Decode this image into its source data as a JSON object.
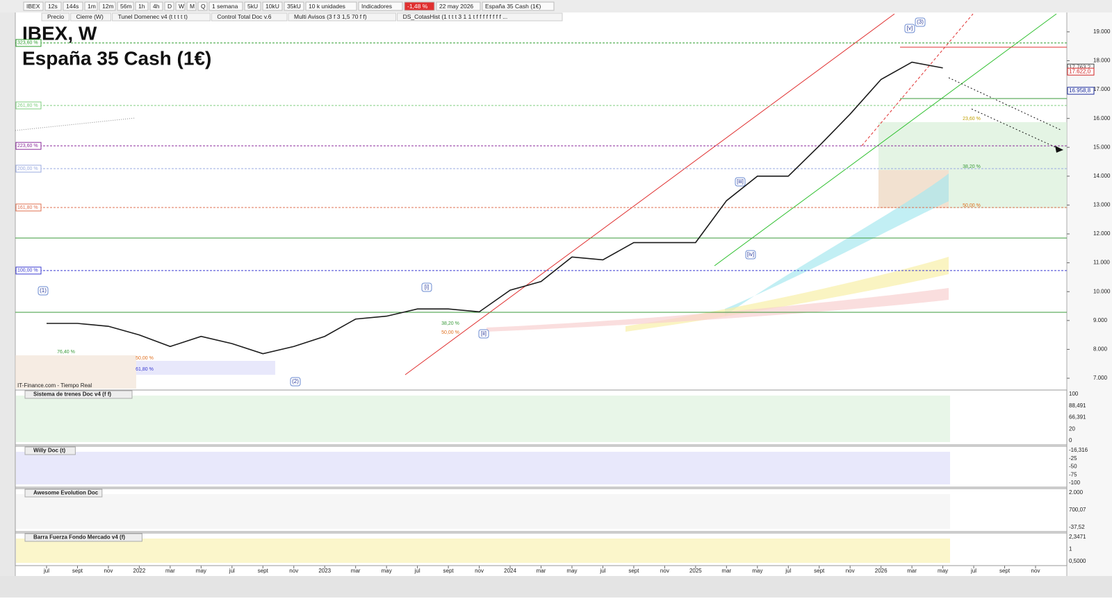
{
  "toolbar": {
    "items": [
      "IBEX",
      "12s",
      "144s",
      "1m",
      "12m",
      "56m",
      "1h",
      "4h",
      "D",
      "W",
      "M",
      "Q",
      "1 semana",
      "5kU",
      "10kU",
      "35kU",
      "10 k unidades",
      "Indicadores",
      "-1,48 %",
      "22 may 2026",
      "España 35 Cash (1€)"
    ]
  },
  "indicator_bar": {
    "items": [
      "Precio",
      "Cierre (W)",
      "Tunel Domenec v4 (t t t t t)",
      "Control Total Doc v.6",
      "Multi Avisos (3 f 3 1,5 70 f f)",
      "DS_CotasHist (1 t t t 3 1 1 t f f f f f f f f ..."
    ]
  },
  "chart_data": {
    "type": "line",
    "title": "IBEX, W",
    "subtitle": "España 35 Cash (1€)",
    "source": "IT-Finance.com - Tiempo Real",
    "categories": [
      "jul",
      "sept",
      "nov",
      "2022",
      "mar",
      "may",
      "jul",
      "sept",
      "nov",
      "2023",
      "mar",
      "may",
      "jul",
      "sept",
      "nov",
      "2024",
      "mar",
      "may",
      "jul",
      "sept",
      "nov",
      "2025",
      "mar",
      "may",
      "jul",
      "sept",
      "nov",
      "2026",
      "mar",
      "may",
      "jul",
      "sept",
      "nov"
    ],
    "series": [
      {
        "name": "Cierre (W)",
        "color": "#1a1a1a",
        "values": [
          8900,
          8900,
          8800,
          8500,
          8100,
          8450,
          8200,
          7850,
          8100,
          8450,
          9050,
          9150,
          9400,
          9400,
          9300,
          10050,
          10350,
          11200,
          11100,
          11700,
          11700,
          11700,
          13150,
          14000,
          14000,
          15050,
          16150,
          17350,
          17950,
          17750,
          null,
          null,
          null
        ]
      }
    ],
    "ylim": [
      6640,
      19670
    ],
    "yticks": [
      {
        "value": 7000,
        "label": "7.000"
      },
      {
        "value": 8000,
        "label": "8.000"
      },
      {
        "value": 9000,
        "label": "9.000"
      },
      {
        "value": 10000,
        "label": "10.000"
      },
      {
        "value": 11000,
        "label": "11.000"
      },
      {
        "value": 12000,
        "label": "12.000"
      },
      {
        "value": 13000,
        "label": "13.000"
      },
      {
        "value": 14000,
        "label": "14.000"
      },
      {
        "value": 15000,
        "label": "15.000"
      },
      {
        "value": 16000,
        "label": "16.000"
      },
      {
        "value": 17000,
        "label": "17.000"
      },
      {
        "value": 18000,
        "label": "18.000"
      },
      {
        "value": 19000,
        "label": "19.000"
      }
    ],
    "price_labels": [
      {
        "value": 17763.2,
        "label": "17.763,2",
        "color": "#444444"
      },
      {
        "value": 17622.0,
        "label": "17.622,0",
        "color": "#d02020"
      },
      {
        "value": 16958.8,
        "label": "16.958,8",
        "color": "#1a2a9a"
      }
    ],
    "fib_levels": [
      {
        "value": 18615,
        "label": "323,60 %",
        "color": "#2e9e2e"
      },
      {
        "value": 16450,
        "label": "261,80 %",
        "color": "#7fcf7f"
      },
      {
        "value": 15050,
        "label": "223,60 %",
        "color": "#8a2a9a"
      },
      {
        "value": 14260,
        "label": "200,00 %",
        "color": "#9aaae0"
      },
      {
        "value": 12915,
        "label": "161,80 %",
        "color": "#e07050"
      },
      {
        "value": 10730,
        "label": "100,00 %",
        "color": "#3a3ad0"
      }
    ],
    "wave_labels": [
      "(1)",
      "(2)",
      "(3)",
      "[i]",
      "[ii]",
      "[iii]",
      "[iv]",
      "[v]"
    ],
    "retracement_labels": [
      "76,40 %",
      "61,80 %",
      "50,00 %",
      "38,20 %",
      "50,00 %",
      "23,60 %",
      "38,20 %",
      "50,00 %"
    ]
  },
  "panels": [
    {
      "title": "Sistema de trenes Doc v4 (f f)",
      "labels": [
        "100",
        "88,491",
        "66,391",
        "20",
        "0"
      ]
    },
    {
      "title": "Willy Doc (t)",
      "labels": [
        "-16,316",
        "-25",
        "-50",
        "-75",
        "-100"
      ]
    },
    {
      "title": "Awesome Evolution Doc",
      "labels": [
        "2.000",
        "700,07",
        "-37,52"
      ]
    },
    {
      "title": "Barra Fuerza Fondo Mercado v4 (f)",
      "labels": [
        "2,3471",
        "1",
        "0,5000"
      ]
    }
  ]
}
